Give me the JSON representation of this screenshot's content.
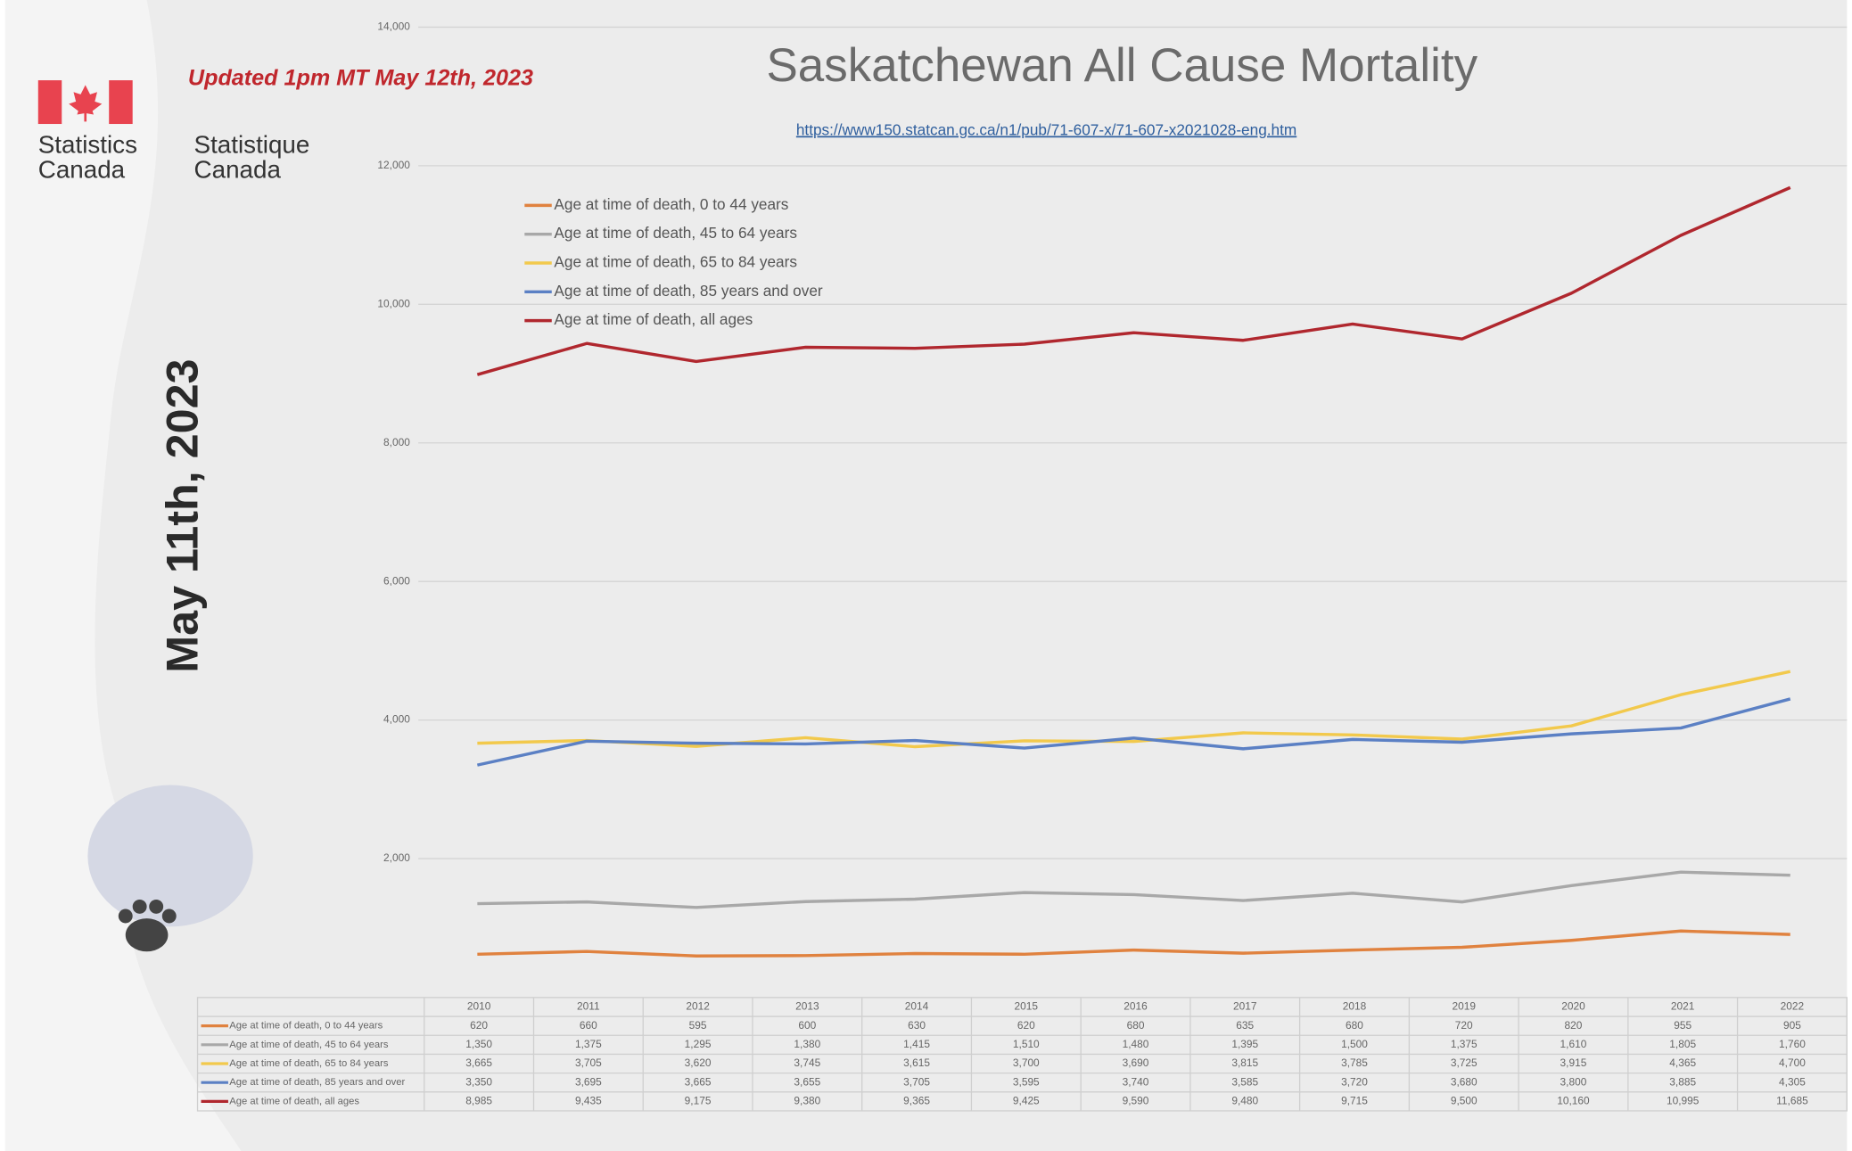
{
  "header": {
    "updated": "Updated 1pm MT May 12th, 2023",
    "org_en": "Statistics Canada",
    "org_fr": "Statistique Canada",
    "date_label": "May 11th, 2023"
  },
  "chart_data": {
    "type": "line",
    "title": "Saskatchewan All Cause Mortality",
    "url": "https://www150.statcan.gc.ca/n1/pub/71-607-x/71-607-x2021028-eng.htm",
    "categories": [
      "2010",
      "2011",
      "2012",
      "2013",
      "2014",
      "2015",
      "2016",
      "2017",
      "2018",
      "2019",
      "2020",
      "2021",
      "2022"
    ],
    "ylim": [
      0,
      14000
    ],
    "yticks": [
      {
        "value": 2000,
        "label": "2,000"
      },
      {
        "value": 4000,
        "label": "4,000"
      },
      {
        "value": 6000,
        "label": "6,000"
      },
      {
        "value": 8000,
        "label": "8,000"
      },
      {
        "value": 10000,
        "label": "10,000"
      },
      {
        "value": 12000,
        "label": "12,000"
      },
      {
        "value": 14000,
        "label": "14,000"
      }
    ],
    "grid": true,
    "series": [
      {
        "name": "Age at time of death, 0 to 44 years",
        "color": "#e0823f",
        "values": [
          620,
          660,
          595,
          600,
          630,
          620,
          680,
          635,
          680,
          720,
          820,
          955,
          905
        ],
        "value_labels": [
          "620",
          "660",
          "595",
          "600",
          "630",
          "620",
          "680",
          "635",
          "680",
          "720",
          "820",
          "955",
          "905"
        ]
      },
      {
        "name": "Age at time of death, 45 to 64 years",
        "color": "#a8a8a8",
        "values": [
          1350,
          1375,
          1295,
          1380,
          1415,
          1510,
          1480,
          1395,
          1500,
          1375,
          1610,
          1805,
          1760
        ],
        "value_labels": [
          "1,350",
          "1,375",
          "1,295",
          "1,380",
          "1,415",
          "1,510",
          "1,480",
          "1,395",
          "1,500",
          "1,375",
          "1,610",
          "1,805",
          "1,760"
        ]
      },
      {
        "name": "Age at time of death, 65 to 84 years",
        "color": "#f2c94c",
        "values": [
          3665,
          3705,
          3620,
          3745,
          3615,
          3700,
          3690,
          3815,
          3785,
          3725,
          3915,
          4365,
          4700
        ],
        "value_labels": [
          "3,665",
          "3,705",
          "3,620",
          "3,745",
          "3,615",
          "3,700",
          "3,690",
          "3,815",
          "3,785",
          "3,725",
          "3,915",
          "4,365",
          "4,700"
        ]
      },
      {
        "name": "Age at time of death, 85 years and over",
        "color": "#5b80c4",
        "values": [
          3350,
          3695,
          3665,
          3655,
          3705,
          3595,
          3740,
          3585,
          3720,
          3680,
          3800,
          3885,
          4305
        ],
        "value_labels": [
          "3,350",
          "3,695",
          "3,665",
          "3,655",
          "3,705",
          "3,595",
          "3,740",
          "3,585",
          "3,720",
          "3,680",
          "3,800",
          "3,885",
          "4,305"
        ]
      },
      {
        "name": "Age at time of death, all ages",
        "color": "#b0272e",
        "values": [
          8985,
          9435,
          9175,
          9380,
          9365,
          9425,
          9590,
          9480,
          9715,
          9500,
          10160,
          10995,
          11685
        ],
        "value_labels": [
          "8,985",
          "9,435",
          "9,175",
          "9,380",
          "9,365",
          "9,425",
          "9,590",
          "9,480",
          "9,715",
          "9,500",
          "10,160",
          "10,995",
          "11,685"
        ]
      }
    ]
  }
}
